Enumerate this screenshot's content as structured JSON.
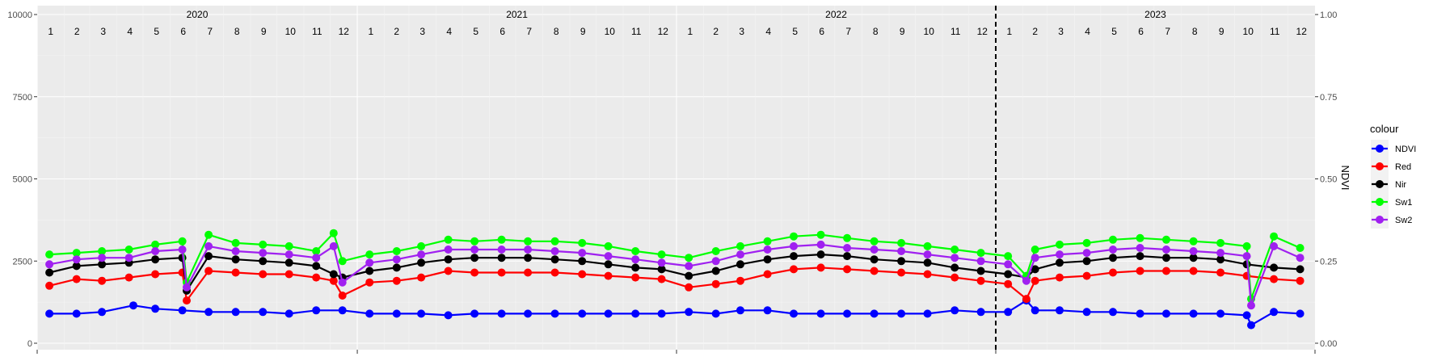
{
  "chart_data": {
    "type": "line",
    "left_axis": {
      "ylim": [
        0,
        10000
      ],
      "ticks": [
        "0",
        "2500",
        "5000",
        "7500",
        "10000"
      ],
      "tick_values": [
        0,
        2500,
        5000,
        7500,
        10000
      ]
    },
    "right_axis": {
      "label": "NDVI",
      "ylim": [
        0,
        1
      ],
      "ticks": [
        "0.00",
        "0.25",
        "0.50",
        "0.75",
        "1.00"
      ],
      "tick_values": [
        0,
        0.25,
        0.5,
        0.75,
        1
      ]
    },
    "x_range": [
      "2020-01-01",
      "2024-01-01"
    ],
    "years": [
      {
        "label": "2020",
        "start": "2020-01-01"
      },
      {
        "label": "2021",
        "start": "2021-01-01"
      },
      {
        "label": "2022",
        "start": "2022-01-01"
      },
      {
        "label": "2023",
        "start": "2023-01-01"
      }
    ],
    "months": [
      "1",
      "2",
      "3",
      "4",
      "5",
      "6",
      "7",
      "8",
      "9",
      "10",
      "11",
      "12"
    ],
    "vline": "2023-01-01",
    "grid": true,
    "legend": {
      "title": "colour",
      "placement": "right"
    },
    "series": [
      {
        "name": "NDVI",
        "color": "#0000ff",
        "axis": "right",
        "points": [
          [
            "2020-01-15",
            0.09
          ],
          [
            "2020-02-15",
            0.09
          ],
          [
            "2020-03-15",
            0.095
          ],
          [
            "2020-04-20",
            0.115
          ],
          [
            "2020-05-15",
            0.105
          ],
          [
            "2020-06-15",
            0.1
          ],
          [
            "2020-07-15",
            0.095
          ],
          [
            "2020-08-15",
            0.095
          ],
          [
            "2020-09-15",
            0.095
          ],
          [
            "2020-10-15",
            0.09
          ],
          [
            "2020-11-15",
            0.1
          ],
          [
            "2020-12-15",
            0.1
          ],
          [
            "2021-01-15",
            0.09
          ],
          [
            "2021-02-15",
            0.09
          ],
          [
            "2021-03-15",
            0.09
          ],
          [
            "2021-04-15",
            0.085
          ],
          [
            "2021-05-15",
            0.09
          ],
          [
            "2021-06-15",
            0.09
          ],
          [
            "2021-07-15",
            0.09
          ],
          [
            "2021-08-15",
            0.09
          ],
          [
            "2021-09-15",
            0.09
          ],
          [
            "2021-10-15",
            0.09
          ],
          [
            "2021-11-15",
            0.09
          ],
          [
            "2021-12-15",
            0.09
          ],
          [
            "2022-01-15",
            0.095
          ],
          [
            "2022-02-15",
            0.09
          ],
          [
            "2022-03-15",
            0.1
          ],
          [
            "2022-04-15",
            0.1
          ],
          [
            "2022-05-15",
            0.09
          ],
          [
            "2022-06-15",
            0.09
          ],
          [
            "2022-07-15",
            0.09
          ],
          [
            "2022-08-15",
            0.09
          ],
          [
            "2022-09-15",
            0.09
          ],
          [
            "2022-10-15",
            0.09
          ],
          [
            "2022-11-15",
            0.1
          ],
          [
            "2022-12-15",
            0.095
          ],
          [
            "2023-01-15",
            0.095
          ],
          [
            "2023-02-05",
            0.13
          ],
          [
            "2023-02-15",
            0.1
          ],
          [
            "2023-03-15",
            0.1
          ],
          [
            "2023-04-15",
            0.095
          ],
          [
            "2023-05-15",
            0.095
          ],
          [
            "2023-06-15",
            0.09
          ],
          [
            "2023-07-15",
            0.09
          ],
          [
            "2023-08-15",
            0.09
          ],
          [
            "2023-09-15",
            0.09
          ],
          [
            "2023-10-15",
            0.085
          ],
          [
            "2023-10-20",
            0.055
          ],
          [
            "2023-11-15",
            0.095
          ],
          [
            "2023-12-15",
            0.09
          ]
        ]
      },
      {
        "name": "Red",
        "color": "#ff0000",
        "axis": "left",
        "points": [
          [
            "2020-01-15",
            1750
          ],
          [
            "2020-02-15",
            1950
          ],
          [
            "2020-03-15",
            1900
          ],
          [
            "2020-04-15",
            2000
          ],
          [
            "2020-05-15",
            2100
          ],
          [
            "2020-06-15",
            2150
          ],
          [
            "2020-06-20",
            1300
          ],
          [
            "2020-07-15",
            2200
          ],
          [
            "2020-08-15",
            2150
          ],
          [
            "2020-09-15",
            2100
          ],
          [
            "2020-10-15",
            2100
          ],
          [
            "2020-11-15",
            2000
          ],
          [
            "2020-12-05",
            1900
          ],
          [
            "2020-12-15",
            1450
          ],
          [
            "2021-01-15",
            1850
          ],
          [
            "2021-02-15",
            1900
          ],
          [
            "2021-03-15",
            2000
          ],
          [
            "2021-04-15",
            2200
          ],
          [
            "2021-05-15",
            2150
          ],
          [
            "2021-06-15",
            2150
          ],
          [
            "2021-07-15",
            2150
          ],
          [
            "2021-08-15",
            2150
          ],
          [
            "2021-09-15",
            2100
          ],
          [
            "2021-10-15",
            2050
          ],
          [
            "2021-11-15",
            2000
          ],
          [
            "2021-12-15",
            1950
          ],
          [
            "2022-01-15",
            1700
          ],
          [
            "2022-02-15",
            1800
          ],
          [
            "2022-03-15",
            1900
          ],
          [
            "2022-04-15",
            2100
          ],
          [
            "2022-05-15",
            2250
          ],
          [
            "2022-06-15",
            2300
          ],
          [
            "2022-07-15",
            2250
          ],
          [
            "2022-08-15",
            2200
          ],
          [
            "2022-09-15",
            2150
          ],
          [
            "2022-10-15",
            2100
          ],
          [
            "2022-11-15",
            2000
          ],
          [
            "2022-12-15",
            1900
          ],
          [
            "2023-01-15",
            1800
          ],
          [
            "2023-02-05",
            1350
          ],
          [
            "2023-02-15",
            1900
          ],
          [
            "2023-03-15",
            2000
          ],
          [
            "2023-04-15",
            2050
          ],
          [
            "2023-05-15",
            2150
          ],
          [
            "2023-06-15",
            2200
          ],
          [
            "2023-07-15",
            2200
          ],
          [
            "2023-08-15",
            2200
          ],
          [
            "2023-09-15",
            2150
          ],
          [
            "2023-10-15",
            2050
          ],
          [
            "2023-11-15",
            1950
          ],
          [
            "2023-12-15",
            1900
          ]
        ]
      },
      {
        "name": "Nir",
        "color": "#000000",
        "axis": "left",
        "points": [
          [
            "2020-01-15",
            2150
          ],
          [
            "2020-02-15",
            2350
          ],
          [
            "2020-03-15",
            2400
          ],
          [
            "2020-04-15",
            2450
          ],
          [
            "2020-05-15",
            2550
          ],
          [
            "2020-06-15",
            2600
          ],
          [
            "2020-06-20",
            1600
          ],
          [
            "2020-07-15",
            2650
          ],
          [
            "2020-08-15",
            2550
          ],
          [
            "2020-09-15",
            2500
          ],
          [
            "2020-10-15",
            2450
          ],
          [
            "2020-11-15",
            2350
          ],
          [
            "2020-12-05",
            2100
          ],
          [
            "2020-12-15",
            2000
          ],
          [
            "2021-01-15",
            2200
          ],
          [
            "2021-02-15",
            2300
          ],
          [
            "2021-03-15",
            2450
          ],
          [
            "2021-04-15",
            2550
          ],
          [
            "2021-05-15",
            2600
          ],
          [
            "2021-06-15",
            2600
          ],
          [
            "2021-07-15",
            2600
          ],
          [
            "2021-08-15",
            2550
          ],
          [
            "2021-09-15",
            2500
          ],
          [
            "2021-10-15",
            2400
          ],
          [
            "2021-11-15",
            2300
          ],
          [
            "2021-12-15",
            2250
          ],
          [
            "2022-01-15",
            2050
          ],
          [
            "2022-02-15",
            2200
          ],
          [
            "2022-03-15",
            2400
          ],
          [
            "2022-04-15",
            2550
          ],
          [
            "2022-05-15",
            2650
          ],
          [
            "2022-06-15",
            2700
          ],
          [
            "2022-07-15",
            2650
          ],
          [
            "2022-08-15",
            2550
          ],
          [
            "2022-09-15",
            2500
          ],
          [
            "2022-10-15",
            2450
          ],
          [
            "2022-11-15",
            2300
          ],
          [
            "2022-12-15",
            2200
          ],
          [
            "2023-01-15",
            2100
          ],
          [
            "2023-02-05",
            2000
          ],
          [
            "2023-02-15",
            2250
          ],
          [
            "2023-03-15",
            2450
          ],
          [
            "2023-04-15",
            2500
          ],
          [
            "2023-05-15",
            2600
          ],
          [
            "2023-06-15",
            2650
          ],
          [
            "2023-07-15",
            2600
          ],
          [
            "2023-08-15",
            2600
          ],
          [
            "2023-09-15",
            2550
          ],
          [
            "2023-10-15",
            2400
          ],
          [
            "2023-11-15",
            2300
          ],
          [
            "2023-12-15",
            2250
          ]
        ]
      },
      {
        "name": "Sw1",
        "color": "#00ff00",
        "axis": "left",
        "points": [
          [
            "2020-01-15",
            2700
          ],
          [
            "2020-02-15",
            2750
          ],
          [
            "2020-03-15",
            2800
          ],
          [
            "2020-04-15",
            2850
          ],
          [
            "2020-05-15",
            3000
          ],
          [
            "2020-06-15",
            3100
          ],
          [
            "2020-06-20",
            1850
          ],
          [
            "2020-07-15",
            3300
          ],
          [
            "2020-08-15",
            3050
          ],
          [
            "2020-09-15",
            3000
          ],
          [
            "2020-10-15",
            2950
          ],
          [
            "2020-11-15",
            2800
          ],
          [
            "2020-12-05",
            3350
          ],
          [
            "2020-12-15",
            2500
          ],
          [
            "2021-01-15",
            2700
          ],
          [
            "2021-02-15",
            2800
          ],
          [
            "2021-03-15",
            2950
          ],
          [
            "2021-04-15",
            3150
          ],
          [
            "2021-05-15",
            3100
          ],
          [
            "2021-06-15",
            3150
          ],
          [
            "2021-07-15",
            3100
          ],
          [
            "2021-08-15",
            3100
          ],
          [
            "2021-09-15",
            3050
          ],
          [
            "2021-10-15",
            2950
          ],
          [
            "2021-11-15",
            2800
          ],
          [
            "2021-12-15",
            2700
          ],
          [
            "2022-01-15",
            2600
          ],
          [
            "2022-02-15",
            2800
          ],
          [
            "2022-03-15",
            2950
          ],
          [
            "2022-04-15",
            3100
          ],
          [
            "2022-05-15",
            3250
          ],
          [
            "2022-06-15",
            3300
          ],
          [
            "2022-07-15",
            3200
          ],
          [
            "2022-08-15",
            3100
          ],
          [
            "2022-09-15",
            3050
          ],
          [
            "2022-10-15",
            2950
          ],
          [
            "2022-11-15",
            2850
          ],
          [
            "2022-12-15",
            2750
          ],
          [
            "2023-01-15",
            2650
          ],
          [
            "2023-02-05",
            2050
          ],
          [
            "2023-02-15",
            2850
          ],
          [
            "2023-03-15",
            3000
          ],
          [
            "2023-04-15",
            3050
          ],
          [
            "2023-05-15",
            3150
          ],
          [
            "2023-06-15",
            3200
          ],
          [
            "2023-07-15",
            3150
          ],
          [
            "2023-08-15",
            3100
          ],
          [
            "2023-09-15",
            3050
          ],
          [
            "2023-10-15",
            2950
          ],
          [
            "2023-10-20",
            1350
          ],
          [
            "2023-11-15",
            3250
          ],
          [
            "2023-12-15",
            2900
          ]
        ]
      },
      {
        "name": "Sw2",
        "color": "#a020f0",
        "axis": "left",
        "points": [
          [
            "2020-01-15",
            2400
          ],
          [
            "2020-02-15",
            2550
          ],
          [
            "2020-03-15",
            2600
          ],
          [
            "2020-04-15",
            2600
          ],
          [
            "2020-05-15",
            2800
          ],
          [
            "2020-06-15",
            2850
          ],
          [
            "2020-06-20",
            1700
          ],
          [
            "2020-07-15",
            2950
          ],
          [
            "2020-08-15",
            2800
          ],
          [
            "2020-09-15",
            2750
          ],
          [
            "2020-10-15",
            2700
          ],
          [
            "2020-11-15",
            2600
          ],
          [
            "2020-12-05",
            2950
          ],
          [
            "2020-12-15",
            1850
          ],
          [
            "2021-01-15",
            2450
          ],
          [
            "2021-02-15",
            2550
          ],
          [
            "2021-03-15",
            2700
          ],
          [
            "2021-04-15",
            2850
          ],
          [
            "2021-05-15",
            2850
          ],
          [
            "2021-06-15",
            2850
          ],
          [
            "2021-07-15",
            2850
          ],
          [
            "2021-08-15",
            2800
          ],
          [
            "2021-09-15",
            2750
          ],
          [
            "2021-10-15",
            2650
          ],
          [
            "2021-11-15",
            2550
          ],
          [
            "2021-12-15",
            2450
          ],
          [
            "2022-01-15",
            2350
          ],
          [
            "2022-02-15",
            2500
          ],
          [
            "2022-03-15",
            2700
          ],
          [
            "2022-04-15",
            2850
          ],
          [
            "2022-05-15",
            2950
          ],
          [
            "2022-06-15",
            3000
          ],
          [
            "2022-07-15",
            2900
          ],
          [
            "2022-08-15",
            2850
          ],
          [
            "2022-09-15",
            2800
          ],
          [
            "2022-10-15",
            2700
          ],
          [
            "2022-11-15",
            2600
          ],
          [
            "2022-12-15",
            2500
          ],
          [
            "2023-01-15",
            2400
          ],
          [
            "2023-02-05",
            1900
          ],
          [
            "2023-02-15",
            2600
          ],
          [
            "2023-03-15",
            2700
          ],
          [
            "2023-04-15",
            2750
          ],
          [
            "2023-05-15",
            2850
          ],
          [
            "2023-06-15",
            2900
          ],
          [
            "2023-07-15",
            2850
          ],
          [
            "2023-08-15",
            2800
          ],
          [
            "2023-09-15",
            2750
          ],
          [
            "2023-10-15",
            2650
          ],
          [
            "2023-10-20",
            1150
          ],
          [
            "2023-11-15",
            2950
          ],
          [
            "2023-12-15",
            2600
          ]
        ]
      }
    ]
  }
}
